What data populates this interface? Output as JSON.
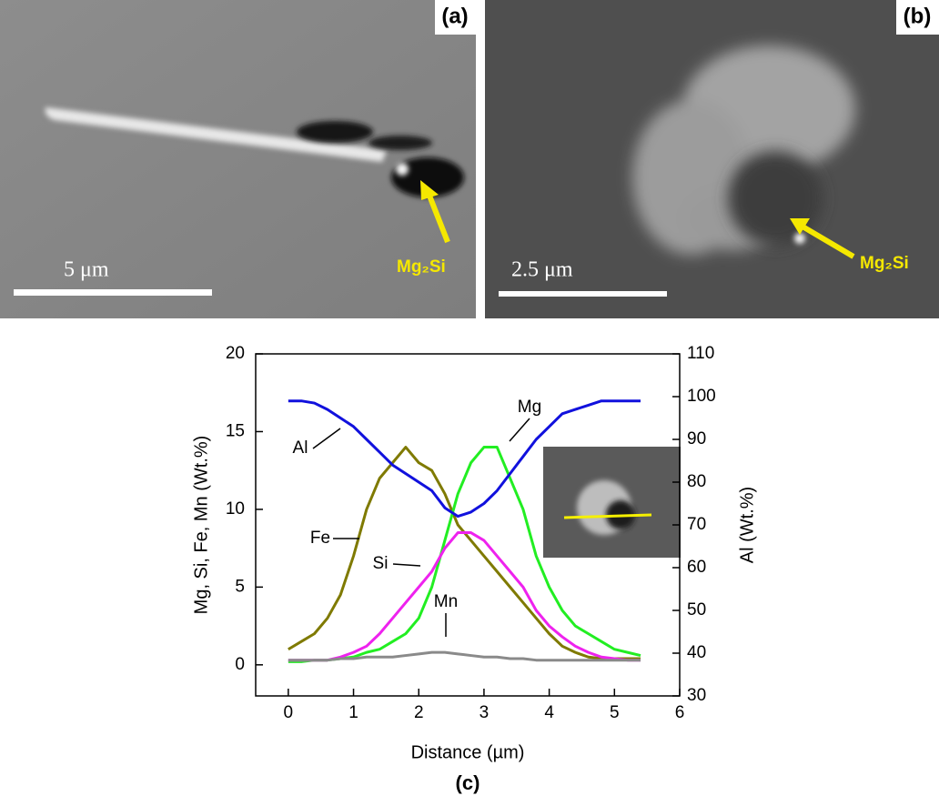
{
  "panels": [
    {
      "label": "(a)",
      "scale_bar": "5 μm",
      "annotation": "Mg₂Si"
    },
    {
      "label": "(b)",
      "scale_bar": "2.5 μm",
      "annotation": "Mg₂Si"
    }
  ],
  "chart_data": {
    "type": "line",
    "label": "(c)",
    "x_label": "Distance (µm)",
    "y_label": "Mg, Si, Fe, Mn (Wt.%)",
    "y2_label": "Al (Wt.%)",
    "xlim": [
      -0.5,
      6
    ],
    "xticks": [
      0,
      1,
      2,
      3,
      4,
      5,
      6
    ],
    "ylim": [
      -2,
      20
    ],
    "yticks": [
      0,
      5,
      10,
      15,
      20
    ],
    "y2lim": [
      30,
      110
    ],
    "y2ticks": [
      30,
      40,
      50,
      60,
      70,
      80,
      90,
      100,
      110
    ],
    "x": [
      0,
      0.2,
      0.4,
      0.6,
      0.8,
      1.0,
      1.2,
      1.4,
      1.6,
      1.8,
      2.0,
      2.2,
      2.4,
      2.6,
      2.8,
      3.0,
      3.2,
      3.4,
      3.6,
      3.8,
      4.0,
      4.2,
      4.4,
      4.6,
      4.8,
      5.0,
      5.2,
      5.4
    ],
    "series": [
      {
        "name": "Fe",
        "color": "#7f7a00",
        "values": [
          1,
          1.5,
          2,
          3,
          4.5,
          7,
          10,
          12,
          13,
          14,
          13,
          12.5,
          11,
          9,
          8,
          7,
          6,
          5,
          4,
          3,
          2,
          1.2,
          0.8,
          0.5,
          0.4,
          0.4,
          0.4,
          0.4
        ]
      },
      {
        "name": "Mg",
        "color": "#22ee22",
        "values": [
          0.2,
          0.2,
          0.3,
          0.3,
          0.4,
          0.5,
          0.8,
          1,
          1.5,
          2,
          3,
          5,
          8,
          11,
          13,
          14,
          14,
          12,
          10,
          7,
          5,
          3.5,
          2.5,
          2,
          1.5,
          1,
          0.8,
          0.6
        ]
      },
      {
        "name": "Si",
        "color": "#ee22ee",
        "values": [
          0.3,
          0.3,
          0.3,
          0.3,
          0.5,
          0.8,
          1.2,
          2,
          3,
          4,
          5,
          6,
          7.5,
          8.5,
          8.5,
          8,
          7,
          6,
          5,
          3.5,
          2.5,
          1.8,
          1.2,
          0.8,
          0.5,
          0.4,
          0.3,
          0.3
        ]
      },
      {
        "name": "Mn",
        "color": "#8a8a8a",
        "values": [
          0.3,
          0.3,
          0.3,
          0.3,
          0.4,
          0.4,
          0.5,
          0.5,
          0.5,
          0.6,
          0.7,
          0.8,
          0.8,
          0.7,
          0.6,
          0.5,
          0.5,
          0.4,
          0.4,
          0.3,
          0.3,
          0.3,
          0.3,
          0.3,
          0.3,
          0.3,
          0.3,
          0.3
        ]
      },
      {
        "name": "Al",
        "color": "#1111dd",
        "axis": "y2",
        "values": [
          99,
          99,
          98.5,
          97,
          95,
          93,
          90,
          87,
          84,
          82,
          80,
          78,
          74,
          72,
          73,
          75,
          78,
          82,
          86,
          90,
          93,
          96,
          97,
          98,
          99,
          99,
          99,
          99
        ]
      }
    ]
  }
}
